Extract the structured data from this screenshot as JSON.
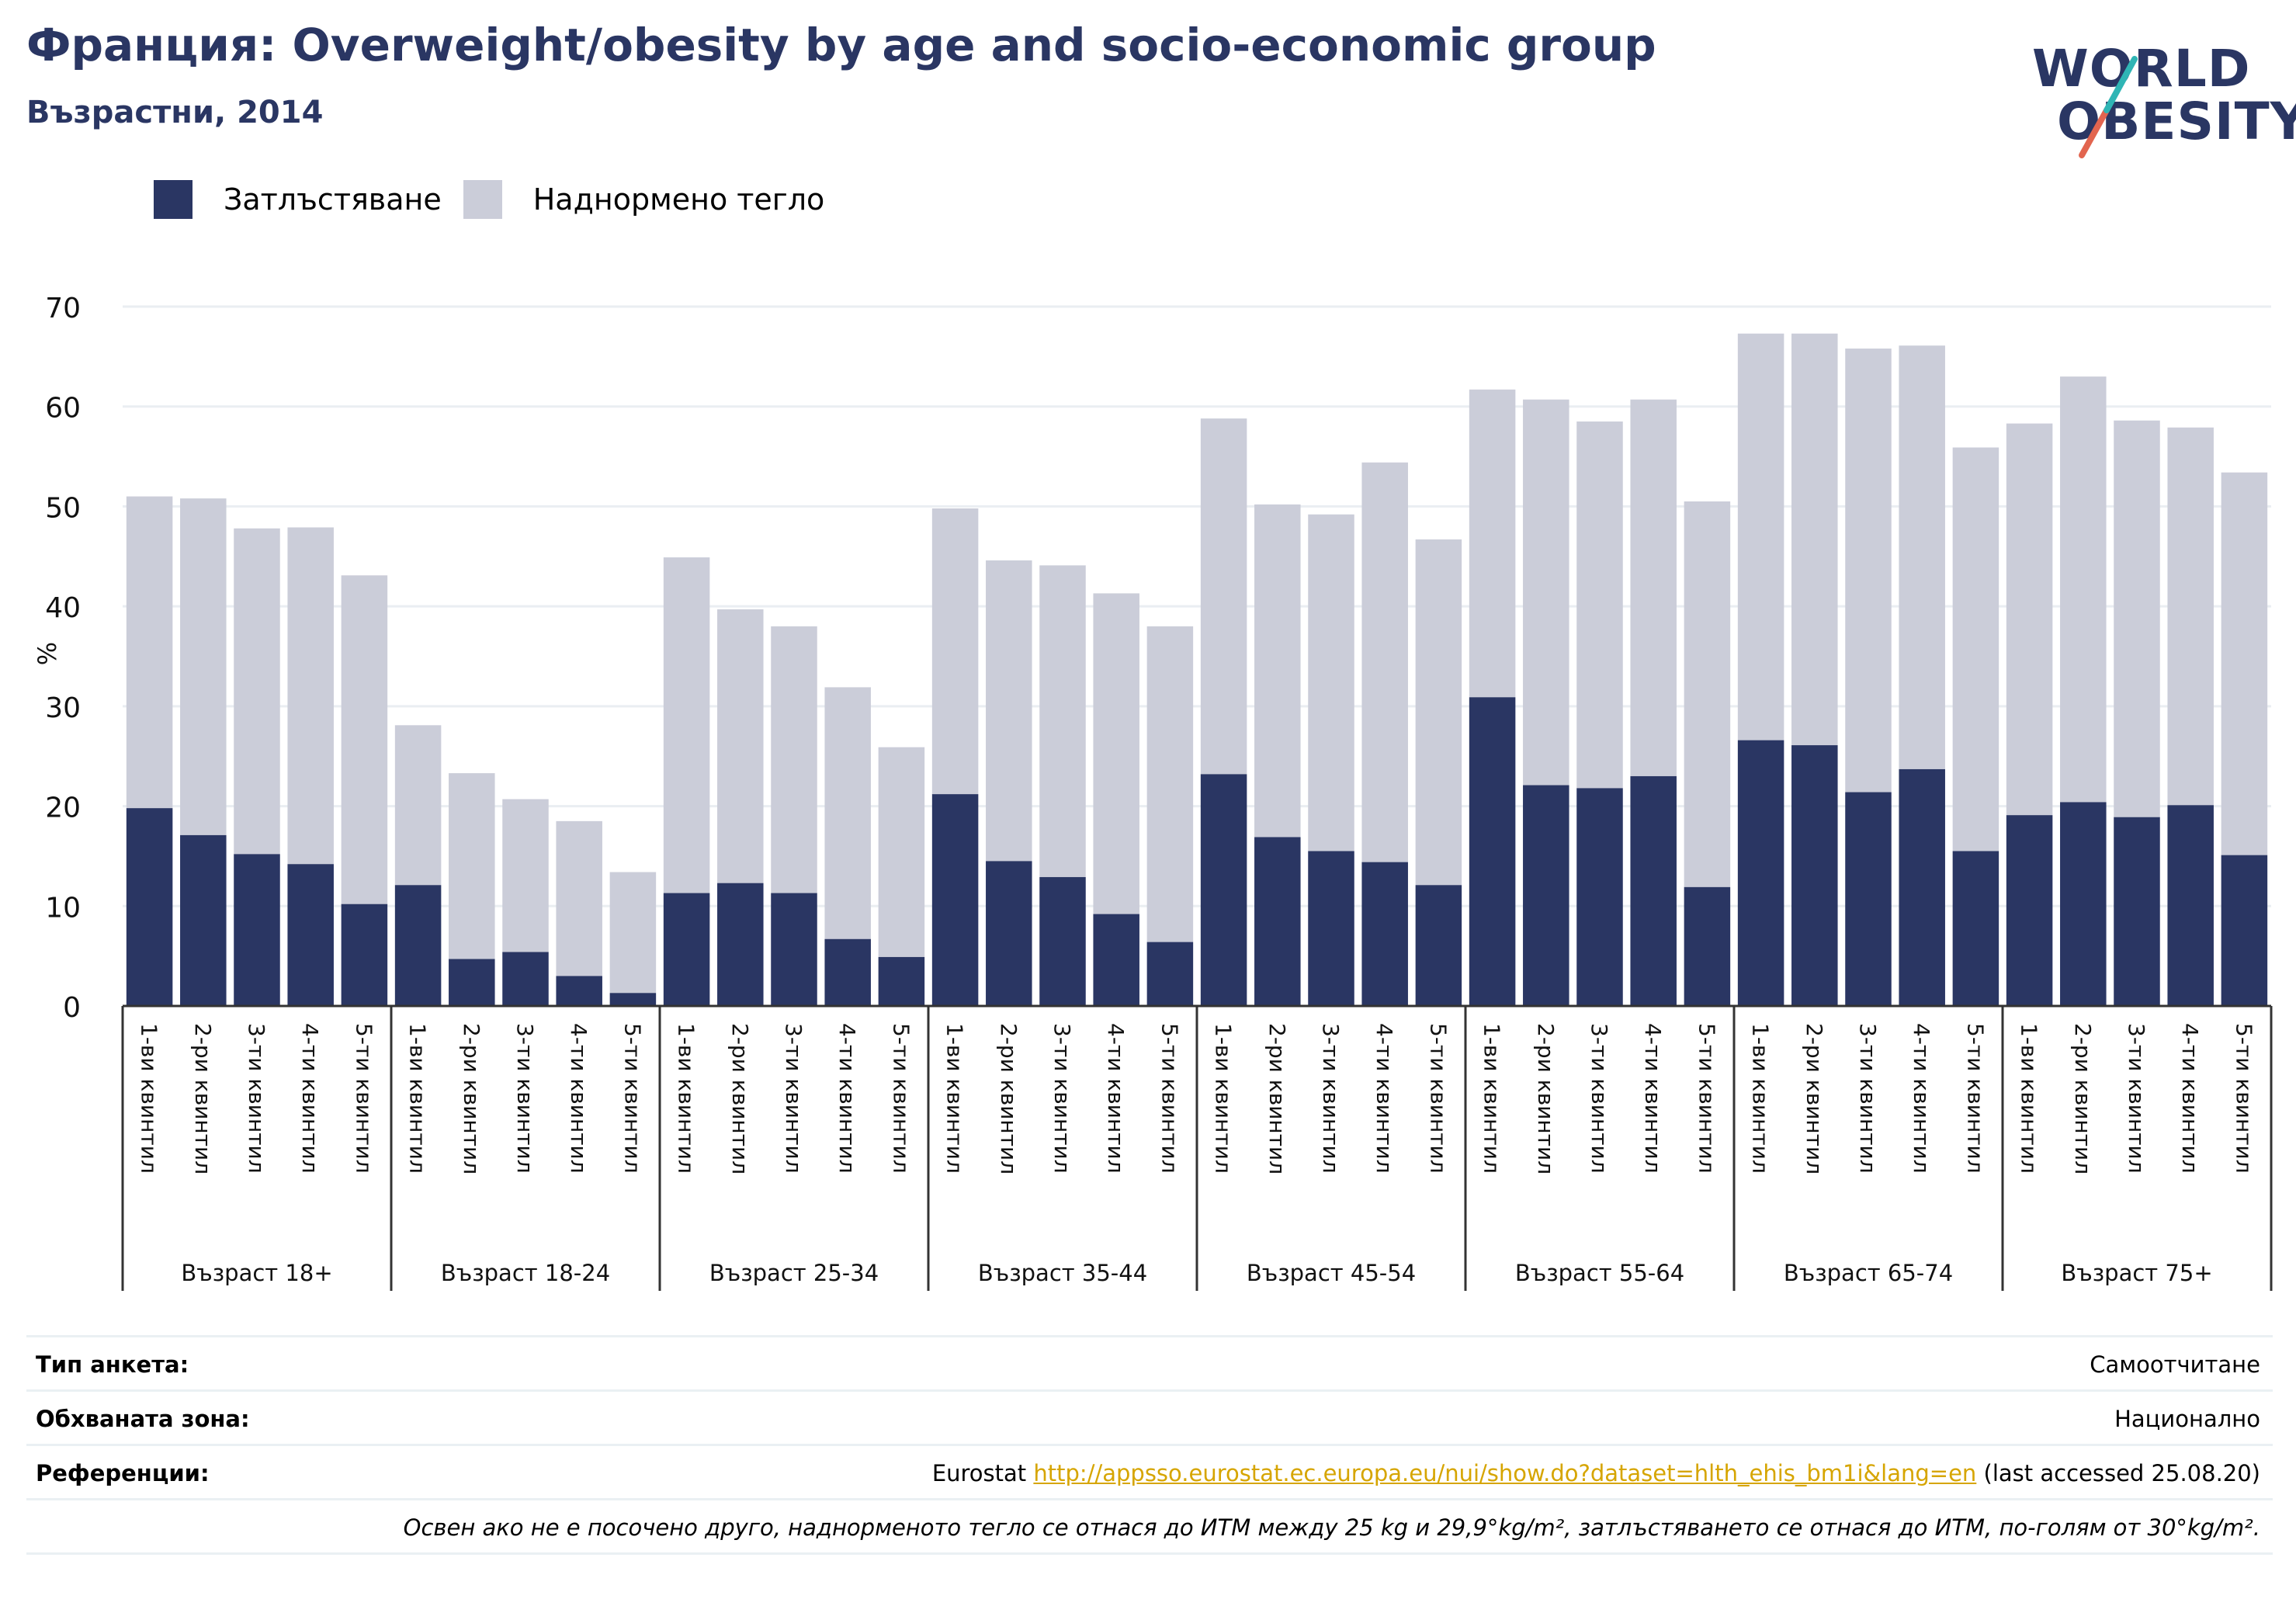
{
  "header": {
    "title": "Франция: Overweight/obesity by age and socio-economic group",
    "subtitle": "Възрастни, 2014"
  },
  "logo": {
    "line1": "WORLD",
    "line2": "OBESITY",
    "colors": {
      "text": "#2a3663",
      "slash_teal": "#2fb5b5",
      "slash_red": "#e2654f"
    }
  },
  "legend": [
    {
      "label": "Затлъстяване",
      "color": "#2a3663"
    },
    {
      "label": "Наднормено тегло",
      "color": "#cbcdd9"
    }
  ],
  "chart_data": {
    "type": "bar",
    "stacked": true,
    "ylabel": "%",
    "ylim": [
      0,
      70
    ],
    "yticks": [
      0,
      10,
      20,
      30,
      40,
      50,
      60,
      70
    ],
    "grid": true,
    "legend_position": "top-left",
    "quintile_labels": [
      "1-ви квинтил",
      "2-ри квинтил",
      "3-ти квинтил",
      "4-ти квинтил",
      "5-ти квинтил"
    ],
    "groups": [
      "Възраст 18+",
      "Възраст 18-24",
      "Възраст 25-34",
      "Възраст 35-44",
      "Възраст 45-54",
      "Възраст 55-64",
      "Възраст 65-74",
      "Възраст 75+"
    ],
    "series": [
      {
        "name": "Затлъстяване",
        "color": "#2a3663",
        "values": [
          [
            19.8,
            17.1,
            15.2,
            14.2,
            10.2
          ],
          [
            12.1,
            4.7,
            5.4,
            3.0,
            1.3
          ],
          [
            11.3,
            12.3,
            11.3,
            6.7,
            4.9
          ],
          [
            21.2,
            14.5,
            12.9,
            9.2,
            6.4
          ],
          [
            23.2,
            16.9,
            15.5,
            14.4,
            12.1
          ],
          [
            30.9,
            22.1,
            21.8,
            23.0,
            11.9
          ],
          [
            26.6,
            26.1,
            21.4,
            23.7,
            15.5
          ],
          [
            19.1,
            20.4,
            18.9,
            20.1,
            15.1
          ]
        ]
      },
      {
        "name": "Наднормено тегло",
        "color": "#cbcdd9",
        "values": [
          [
            31.2,
            33.7,
            32.6,
            33.7,
            32.9
          ],
          [
            16.0,
            18.6,
            15.3,
            15.5,
            12.1
          ],
          [
            33.6,
            27.4,
            26.7,
            25.2,
            21.0
          ],
          [
            28.6,
            30.1,
            31.2,
            32.1,
            31.6
          ],
          [
            35.6,
            33.3,
            33.7,
            40.0,
            34.6
          ],
          [
            30.8,
            38.6,
            36.7,
            37.7,
            38.6
          ],
          [
            40.7,
            41.2,
            44.4,
            42.4,
            40.4
          ],
          [
            39.2,
            42.6,
            39.7,
            37.8,
            38.3
          ]
        ]
      }
    ]
  },
  "footer": {
    "survey_type_label": "Тип анкета:",
    "survey_type_value": "Самоотчитане",
    "coverage_label": "Обхваната зона:",
    "coverage_value": "Национално",
    "references_label": "Референции:",
    "references_prefix": "Eurostat",
    "references_link": "http://appsso.eurostat.ec.europa.eu/nui/show.do?dataset=hlth_ehis_bm1i&lang=en",
    "references_suffix": "(last accessed 25.08.20)",
    "note": "Освен ако не е посочено друго, наднорменото тегло се отнася до ИТМ между 25 kg и 29,9°kg/m², затлъстяването се отнася до ИТМ, по-голям от 30°kg/m²."
  }
}
